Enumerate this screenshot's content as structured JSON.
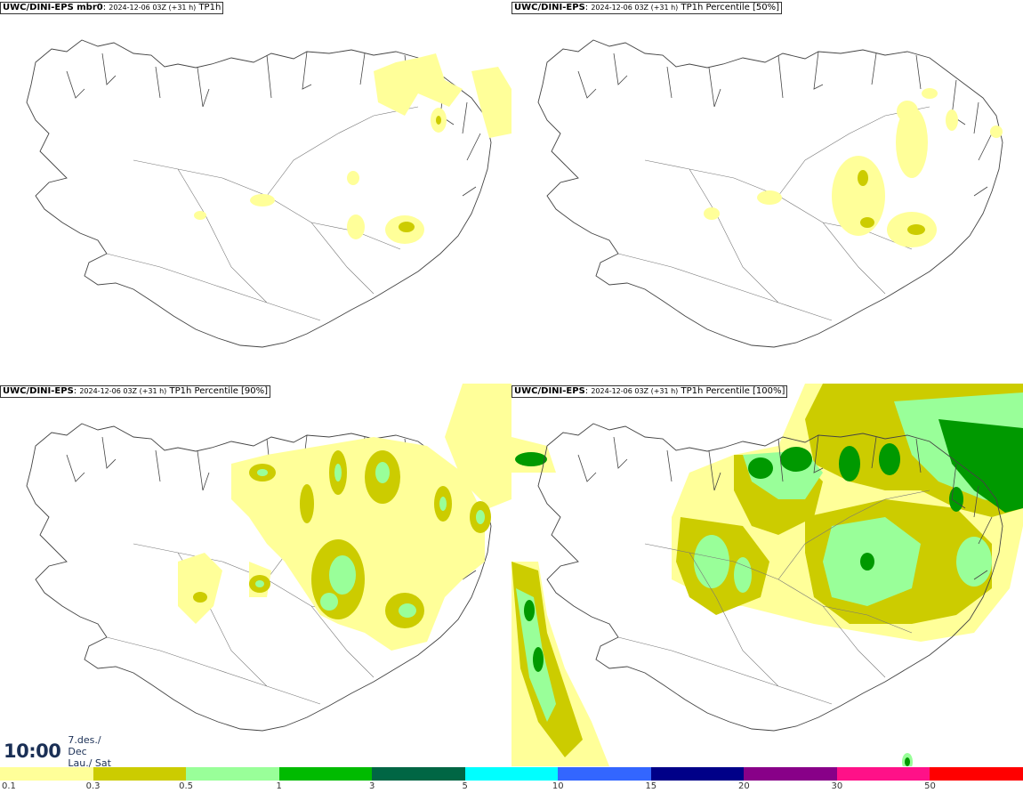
{
  "panels": [
    {
      "model": "UWC/DINI-EPS mbr0",
      "run": "2024-12-06 03Z (+31 h)",
      "field": "TP1h"
    },
    {
      "model": "UWC/DINI-EPS",
      "run": "2024-12-06 03Z (+31 h)",
      "field": "TP1h Percentile [50%]"
    },
    {
      "model": "UWC/DINI-EPS",
      "run": "2024-12-06 03Z (+31 h)",
      "field": "TP1h Percentile [90%]"
    },
    {
      "model": "UWC/DINI-EPS",
      "run": "2024-12-06 03Z (+31 h)",
      "field": "TP1h Percentile [100%]"
    }
  ],
  "time": {
    "clock": "10:00",
    "date": "7.des./ Dec",
    "day": "Lau./ Sat"
  },
  "legend": {
    "colors": [
      "#ffff99",
      "#cccc00",
      "#99ff99",
      "#00bb00",
      "#006644",
      "#00ffff",
      "#3366ff",
      "#000088",
      "#880088",
      "#ff1188",
      "#ff0000"
    ],
    "ticks": [
      "0.1",
      "0.3",
      "0.5",
      "1",
      "3",
      "5",
      "10",
      "15",
      "20",
      "30",
      "50"
    ]
  }
}
